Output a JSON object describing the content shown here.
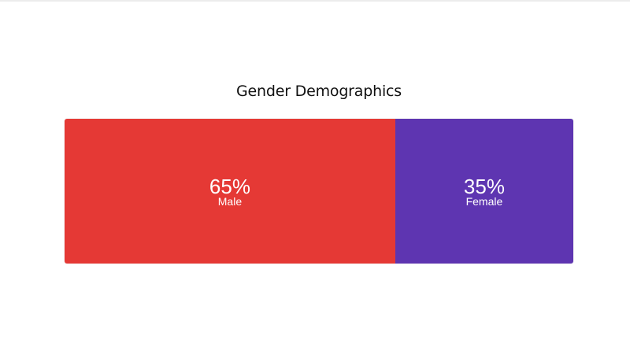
{
  "chart_data": {
    "type": "bar",
    "title": "Gender Demographics",
    "categories": [
      "Male",
      "Female"
    ],
    "values": [
      65,
      35
    ],
    "labels": [
      "65%",
      "35%"
    ],
    "colors": [
      "#e53935",
      "#5e35b1"
    ],
    "stacked": true,
    "orientation": "horizontal",
    "unit": "%"
  }
}
